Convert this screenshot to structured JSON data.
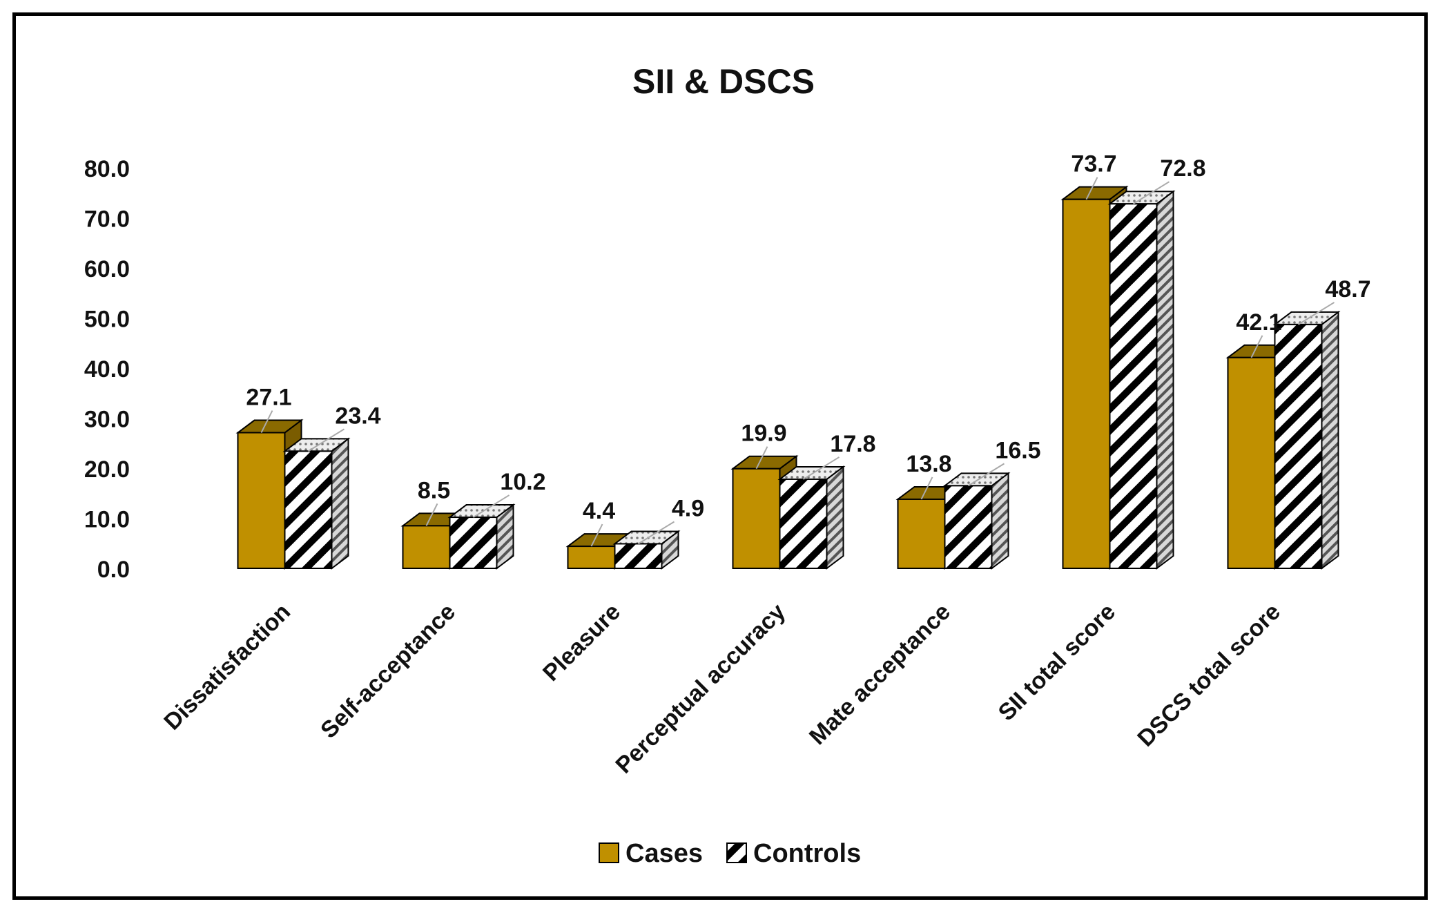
{
  "chart_data": {
    "type": "bar",
    "title": "SII & DSCS",
    "categories": [
      "Dissatisfaction",
      "Self-acceptance",
      "Pleasure",
      "Perceptual accuracy",
      "Mate acceptance",
      "SII total score",
      "DSCS total score"
    ],
    "series": [
      {
        "name": "Cases",
        "values": [
          27.1,
          8.5,
          4.4,
          19.9,
          13.8,
          73.7,
          42.1
        ],
        "color": "#C09000",
        "pattern": "solid"
      },
      {
        "name": "Controls",
        "values": [
          23.4,
          10.2,
          4.9,
          17.8,
          16.5,
          72.8,
          48.7
        ],
        "color": "#ffffff",
        "pattern": "diagonal-stripes"
      }
    ],
    "yticks": [
      "0.0",
      "10.0",
      "20.0",
      "30.0",
      "40.0",
      "50.0",
      "60.0",
      "70.0",
      "80.0"
    ],
    "ylim": [
      0,
      80
    ],
    "xlabel": "",
    "ylabel": "",
    "grid": false,
    "legend_position": "bottom",
    "style": "3d-column"
  }
}
